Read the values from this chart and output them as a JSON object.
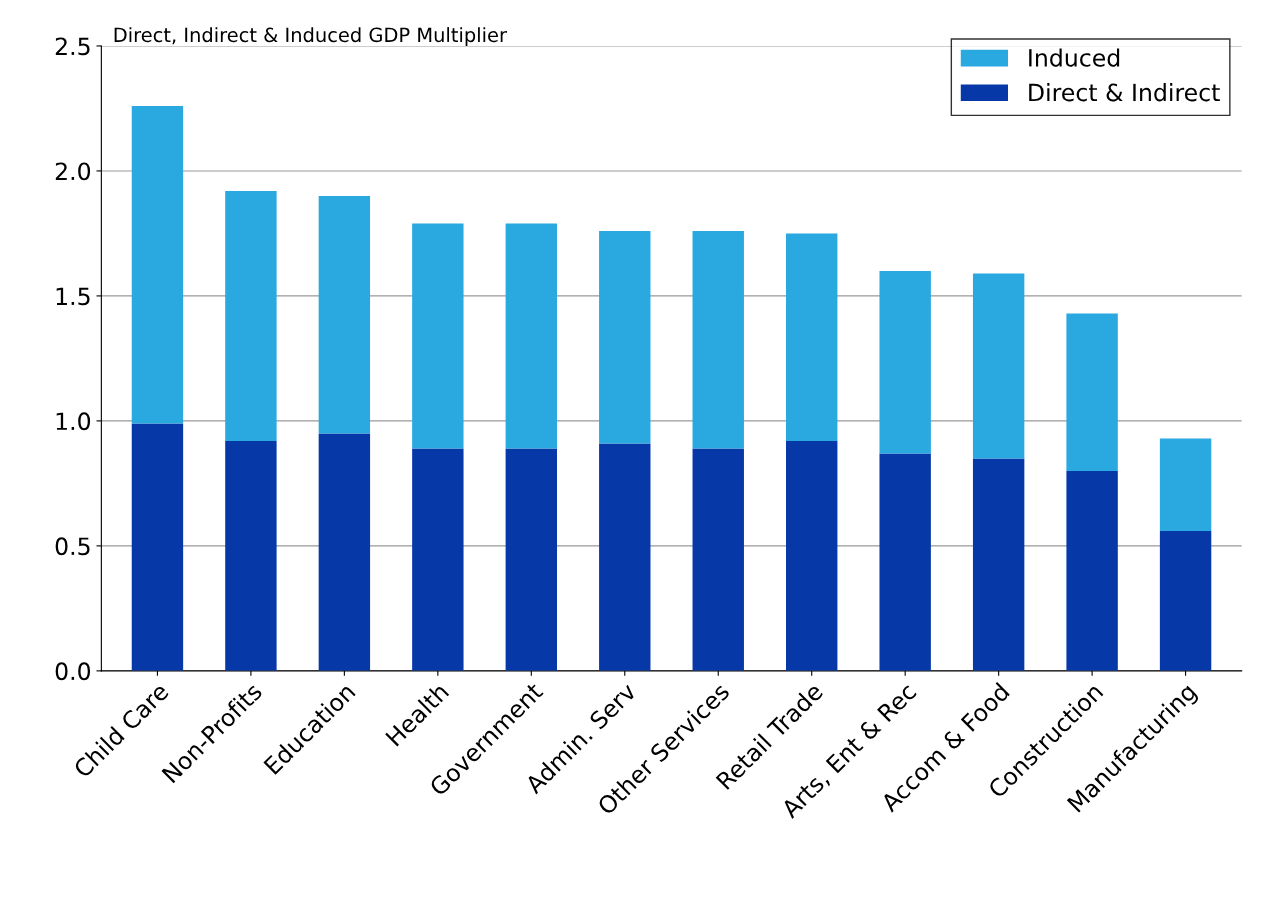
{
  "chart_data": {
    "type": "bar",
    "title": "Direct, Indirect & Induced GDP Multiplier",
    "categories": [
      "Child Care",
      "Non-Profits",
      "Education",
      "Health",
      "Government",
      "Admin. Serv",
      "Other Services",
      "Retail Trade",
      "Arts, Ent & Rec",
      "Accom & Food",
      "Construction",
      "Manufacturing"
    ],
    "series": [
      {
        "name": "Direct & Indirect",
        "color": "#0638a8",
        "values": [
          0.99,
          0.92,
          0.95,
          0.89,
          0.89,
          0.91,
          0.89,
          0.92,
          0.87,
          0.85,
          0.8,
          0.56
        ]
      },
      {
        "name": "Induced",
        "color": "#2aa8e0",
        "values": [
          1.27,
          1.0,
          0.95,
          0.9,
          0.9,
          0.85,
          0.87,
          0.83,
          0.73,
          0.74,
          0.63,
          0.37
        ]
      }
    ],
    "stacked": true,
    "ylim": [
      0,
      2.5
    ],
    "yticks": [
      {
        "value": 0,
        "label": "0.0"
      },
      {
        "value": 0.5,
        "label": "0.5"
      },
      {
        "value": 1,
        "label": "1.0"
      },
      {
        "value": 1.5,
        "label": "1.5"
      },
      {
        "value": 2,
        "label": "2.0"
      },
      {
        "value": 2.5,
        "label": "2.5"
      }
    ],
    "grid": "y",
    "legend": "top right"
  }
}
